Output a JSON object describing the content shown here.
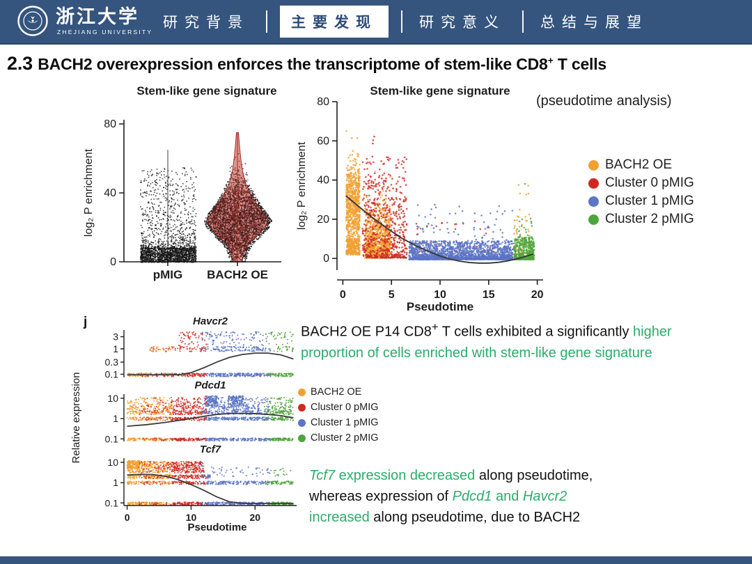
{
  "header": {
    "logo": {
      "cn": "浙江大学",
      "en": "ZHEJIANG UNIVERSITY"
    },
    "tabs": [
      {
        "name": "research-background",
        "label": "研究背景",
        "active": false
      },
      {
        "name": "main-findings",
        "label": "主要发现",
        "active": true
      },
      {
        "name": "research-significance",
        "label": "研究意义",
        "active": false
      },
      {
        "name": "summary-outlook",
        "label": "总结与展望",
        "active": false
      }
    ]
  },
  "title_segments": [
    {
      "text": "2.3 ",
      "cls": "num"
    },
    {
      "text": "BACH2 overexpression enforces the transcriptome of stem-like CD8",
      "cls": ""
    },
    {
      "text": "+",
      "cls": "sup"
    },
    {
      "text": " T cells",
      "cls": ""
    }
  ],
  "annotations": {
    "pseudotime_note": "(pseudotime analysis)",
    "panel_label": "j"
  },
  "legend": {
    "entries": [
      {
        "label": "BACH2 OE",
        "color": "#F2A032"
      },
      {
        "label": "Cluster 0 pMIG",
        "color": "#CE2A20"
      },
      {
        "label": "Cluster 1 pMIG",
        "color": "#5B74C4"
      },
      {
        "label": "Cluster 2 pMIG",
        "color": "#4FA53C"
      }
    ]
  },
  "paragraph1": {
    "segments": [
      {
        "text": "BACH2 OE P14 CD8",
        "cls": ""
      },
      {
        "text": "+",
        "cls": "sup"
      },
      {
        "text": " T cells exhibited a significantly ",
        "cls": ""
      },
      {
        "text": "higher",
        "cls": "grn"
      },
      {
        "br": true
      },
      {
        "text": "proportion of cells enriched with stem-like gene signature",
        "cls": "grn"
      }
    ]
  },
  "paragraph2": {
    "segments": [
      {
        "text": "Tcf7",
        "cls": "grn-it"
      },
      {
        "text": " expression decreased",
        "cls": "grn"
      },
      {
        "text": " along pseudotime,",
        "cls": ""
      },
      {
        "br": true
      },
      {
        "text": "whereas expression of ",
        "cls": ""
      },
      {
        "text": "Pdcd1",
        "cls": "grn-it"
      },
      {
        "text": " and ",
        "cls": "grn"
      },
      {
        "text": "Havcr2",
        "cls": "grn-it"
      },
      {
        "br": true
      },
      {
        "text": "increased",
        "cls": "grn"
      },
      {
        "text": " along pseudotime, due to BACH2",
        "cls": ""
      }
    ]
  },
  "colors": {
    "header_blue": "#35557E",
    "active_tab_text": "#2B4A78",
    "green_text": "#2BAC6B",
    "trend_line": "#3B3B3B",
    "violin_red": "#C0392B",
    "axis": "#1D1D1D"
  },
  "chart_data": [
    {
      "id": "violin_enrichment",
      "type": "scatter",
      "title": "Stem-like gene signature",
      "ylabel": "log₂ P enrichment",
      "ylim": [
        0,
        80
      ],
      "yticks": [
        0,
        40,
        80
      ],
      "categories": [
        "pMIG",
        "BACH2 OE"
      ],
      "groups": [
        {
          "name": "pMIG",
          "n": 2300,
          "dense_frac": 0.62,
          "dense_band": [
            0,
            8
          ],
          "tail_max": 55,
          "tail_k": 2.2,
          "spike_top": 65
        },
        {
          "name": "BACH2 OE",
          "n": 3000,
          "median": 24,
          "sd": 11,
          "range": [
            0.4,
            75
          ],
          "violin": [
            [
              0,
              0.06
            ],
            [
              5,
              0.1
            ],
            [
              10,
              0.16
            ],
            [
              15,
              0.3
            ],
            [
              20,
              0.42
            ],
            [
              24,
              0.46
            ],
            [
              28,
              0.4
            ],
            [
              33,
              0.3
            ],
            [
              38,
              0.22
            ],
            [
              45,
              0.13
            ],
            [
              52,
              0.08
            ],
            [
              60,
              0.05
            ],
            [
              68,
              0.03
            ],
            [
              75,
              0.015
            ]
          ]
        }
      ]
    },
    {
      "id": "pseudotime_enrichment",
      "type": "scatter",
      "title": "Stem-like gene signature",
      "xlabel": "Pseudotime",
      "ylabel": "log₂ P enrichment",
      "xlim": [
        -0.6,
        20.6
      ],
      "ylim": [
        -6,
        80
      ],
      "xticks": [
        0,
        5,
        10,
        15,
        20
      ],
      "yticks": [
        0,
        20,
        40,
        60,
        80
      ],
      "legend_position": "right",
      "series": [
        {
          "name": "BACH2 OE",
          "color": "#F2A032",
          "clusters": [
            {
              "x": [
                0.35,
                1.75
              ],
              "n": 950,
              "y": {
                "type": "gauss",
                "mean": 27,
                "sd": 11,
                "min": 2,
                "max": 75,
                "lowmix": 0.25
              }
            },
            {
              "x": [
                2.3,
                4.9
              ],
              "n": 850,
              "y": {
                "type": "gauss",
                "mean": 13,
                "sd": 8,
                "min": 0.3,
                "max": 46,
                "lowmix": 0.35
              }
            },
            {
              "x": [
                17.6,
                19.3
              ],
              "n": 55,
              "y": {
                "type": "pow",
                "k": 1.6,
                "min": 2,
                "max": 24
              }
            },
            {
              "x": [
                18.0,
                19.2
              ],
              "n": 6,
              "y": {
                "type": "pow",
                "k": 1,
                "min": 24,
                "max": 38
              }
            }
          ]
        },
        {
          "name": "Cluster 0 pMIG",
          "color": "#CE2A20",
          "clusters": [
            {
              "x": [
                2.0,
                6.6
              ],
              "n": 620,
              "y": {
                "type": "pow",
                "k": 2.1,
                "min": 0.3,
                "max": 52
              }
            },
            {
              "x": [
                2.6,
                3.4
              ],
              "n": 3,
              "y": {
                "type": "pow",
                "k": 1,
                "min": 56,
                "max": 64
              }
            },
            {
              "x": [
                7.0,
                16.0
              ],
              "n": 40,
              "y": {
                "type": "pow",
                "k": 1.8,
                "min": 1,
                "max": 22
              }
            }
          ]
        },
        {
          "name": "Cluster 1 pMIG",
          "color": "#5B74C4",
          "clusters": [
            {
              "x": [
                6.8,
                17.5
              ],
              "n": 1900,
              "y": {
                "type": "pow",
                "k": 2.6,
                "min": -0.5,
                "max": 9
              }
            },
            {
              "x": [
                7.5,
                17.5
              ],
              "n": 70,
              "y": {
                "type": "pow",
                "k": 1.5,
                "min": 8,
                "max": 28
              }
            }
          ]
        },
        {
          "name": "Cluster 2 pMIG",
          "color": "#4FA53C",
          "clusters": [
            {
              "x": [
                17.6,
                19.7
              ],
              "n": 430,
              "y": {
                "type": "pow",
                "k": 2.2,
                "min": -0.5,
                "max": 11
              }
            },
            {
              "x": [
                17.8,
                19.5
              ],
              "n": 25,
              "y": {
                "type": "pow",
                "k": 1.3,
                "min": 8,
                "max": 21
              }
            },
            {
              "x": [
                18.6,
                18.9
              ],
              "n": 1,
              "y": {
                "type": "pow",
                "k": 1,
                "min": 38,
                "max": 39
              }
            }
          ]
        }
      ],
      "trend": [
        [
          0.3,
          32
        ],
        [
          1.5,
          27
        ],
        [
          3,
          21
        ],
        [
          4.5,
          15.5
        ],
        [
          6,
          10.5
        ],
        [
          7.5,
          6.5
        ],
        [
          9,
          3.2
        ],
        [
          10,
          1.2
        ],
        [
          11,
          -0.3
        ],
        [
          12,
          -1.4
        ],
        [
          13,
          -2.1
        ],
        [
          14,
          -2.4
        ],
        [
          15,
          -2.4
        ],
        [
          16,
          -2
        ],
        [
          17,
          -1.2
        ],
        [
          18,
          -0.1
        ],
        [
          19,
          1.3
        ],
        [
          19.6,
          2.3
        ]
      ]
    },
    {
      "id": "gene_expression_trends",
      "type": "scatter",
      "panel_label": "j",
      "xlabel": "Pseudotime",
      "ylabel": "Relative expression",
      "xlim": [
        -0.5,
        26.5
      ],
      "xticks": [
        0,
        10,
        20
      ],
      "regions": [
        [
          1.8,
          [
            0
          ]
        ],
        [
          7,
          [
            0,
            0,
            1
          ]
        ],
        [
          11.5,
          [
            1
          ]
        ],
        [
          12.5,
          [
            1,
            2
          ]
        ],
        [
          21.5,
          [
            2
          ]
        ],
        [
          22.5,
          [
            2,
            3
          ]
        ],
        [
          99,
          [
            3
          ]
        ]
      ],
      "subplots": [
        {
          "gene": "Havcr2",
          "ylim": [
            0.075,
            5.5
          ],
          "yticks": [
            "3",
            "1",
            "0.3",
            "0.1"
          ],
          "bands": [
            {
              "y": 0.095,
              "x": [
                0,
                26
              ],
              "n": 520,
              "s": 0.05
            },
            {
              "y": 1.0,
              "x": [
                3.5,
                26
              ],
              "n": 210,
              "s": 0.07
            },
            {
              "y": 2.9,
              "x": [
                8,
                26
              ],
              "n": 190,
              "s": 0.2
            }
          ],
          "clouds": [],
          "trend": [
            [
              0,
              0.095
            ],
            [
              8,
              0.095
            ],
            [
              10,
              0.115
            ],
            [
              12,
              0.18
            ],
            [
              14,
              0.3
            ],
            [
              16,
              0.46
            ],
            [
              18,
              0.6
            ],
            [
              20,
              0.68
            ],
            [
              22,
              0.68
            ],
            [
              24,
              0.58
            ],
            [
              26,
              0.4
            ]
          ]
        },
        {
          "gene": "Pdcd1",
          "ylim": [
            0.075,
            16
          ],
          "yticks": [
            "10",
            "1",
            "0.1"
          ],
          "bands": [
            {
              "y": 0.095,
              "x": [
                0,
                26
              ],
              "n": 480,
              "s": 0.05
            },
            {
              "y": 1.0,
              "x": [
                0,
                26
              ],
              "n": 430,
              "s": 0.06
            },
            {
              "y": 2.0,
              "x": [
                0,
                26
              ],
              "n": 360,
              "s": 0.07
            },
            {
              "y": 3.2,
              "x": [
                0,
                26
              ],
              "n": 280,
              "s": 0.09
            }
          ],
          "clouds": [
            {
              "x": [
                0,
                26
              ],
              "ylog": [
                4,
                11
              ],
              "n": 300
            },
            {
              "x": [
                12.2,
                14.2
              ],
              "ylog": [
                4,
                13
              ],
              "n": 130
            },
            {
              "x": [
                15.8,
                18.2
              ],
              "ylog": [
                4,
                13
              ],
              "n": 130
            }
          ],
          "trend": [
            [
              0,
              0.42
            ],
            [
              3,
              0.5
            ],
            [
              6,
              0.65
            ],
            [
              9,
              0.9
            ],
            [
              12,
              1.3
            ],
            [
              14,
              1.6
            ],
            [
              16,
              1.78
            ],
            [
              18,
              1.82
            ],
            [
              20,
              1.75
            ],
            [
              22,
              1.6
            ],
            [
              24,
              1.4
            ],
            [
              26,
              1.1
            ]
          ]
        },
        {
          "gene": "Tcf7",
          "ylim": [
            0.075,
            16
          ],
          "yticks": [
            "10",
            "1",
            "0.1"
          ],
          "bands": [
            {
              "y": 0.095,
              "x": [
                0,
                26
              ],
              "n": 480,
              "s": 0.05
            },
            {
              "y": 1.0,
              "x": [
                0,
                26
              ],
              "n": 380,
              "s": 0.06
            },
            {
              "y": 2.0,
              "x": [
                0,
                13
              ],
              "n": 280,
              "s": 0.07
            }
          ],
          "clouds": [
            {
              "x": [
                0,
                12
              ],
              "ylog": [
                3,
                11
              ],
              "n": 520
            },
            {
              "x": [
                0,
                2
              ],
              "ylog": [
                5,
                12
              ],
              "n": 140
            },
            {
              "x": [
                13,
                26
              ],
              "ylog": [
                2,
                6
              ],
              "n": 60
            }
          ],
          "trend": [
            [
              0,
              2.35
            ],
            [
              2,
              2.55
            ],
            [
              4,
              2.5
            ],
            [
              6,
              2.05
            ],
            [
              8,
              1.4
            ],
            [
              10,
              0.8
            ],
            [
              12,
              0.42
            ],
            [
              14,
              0.2
            ],
            [
              16,
              0.115
            ],
            [
              18,
              0.095
            ],
            [
              26,
              0.095
            ]
          ]
        }
      ]
    }
  ]
}
